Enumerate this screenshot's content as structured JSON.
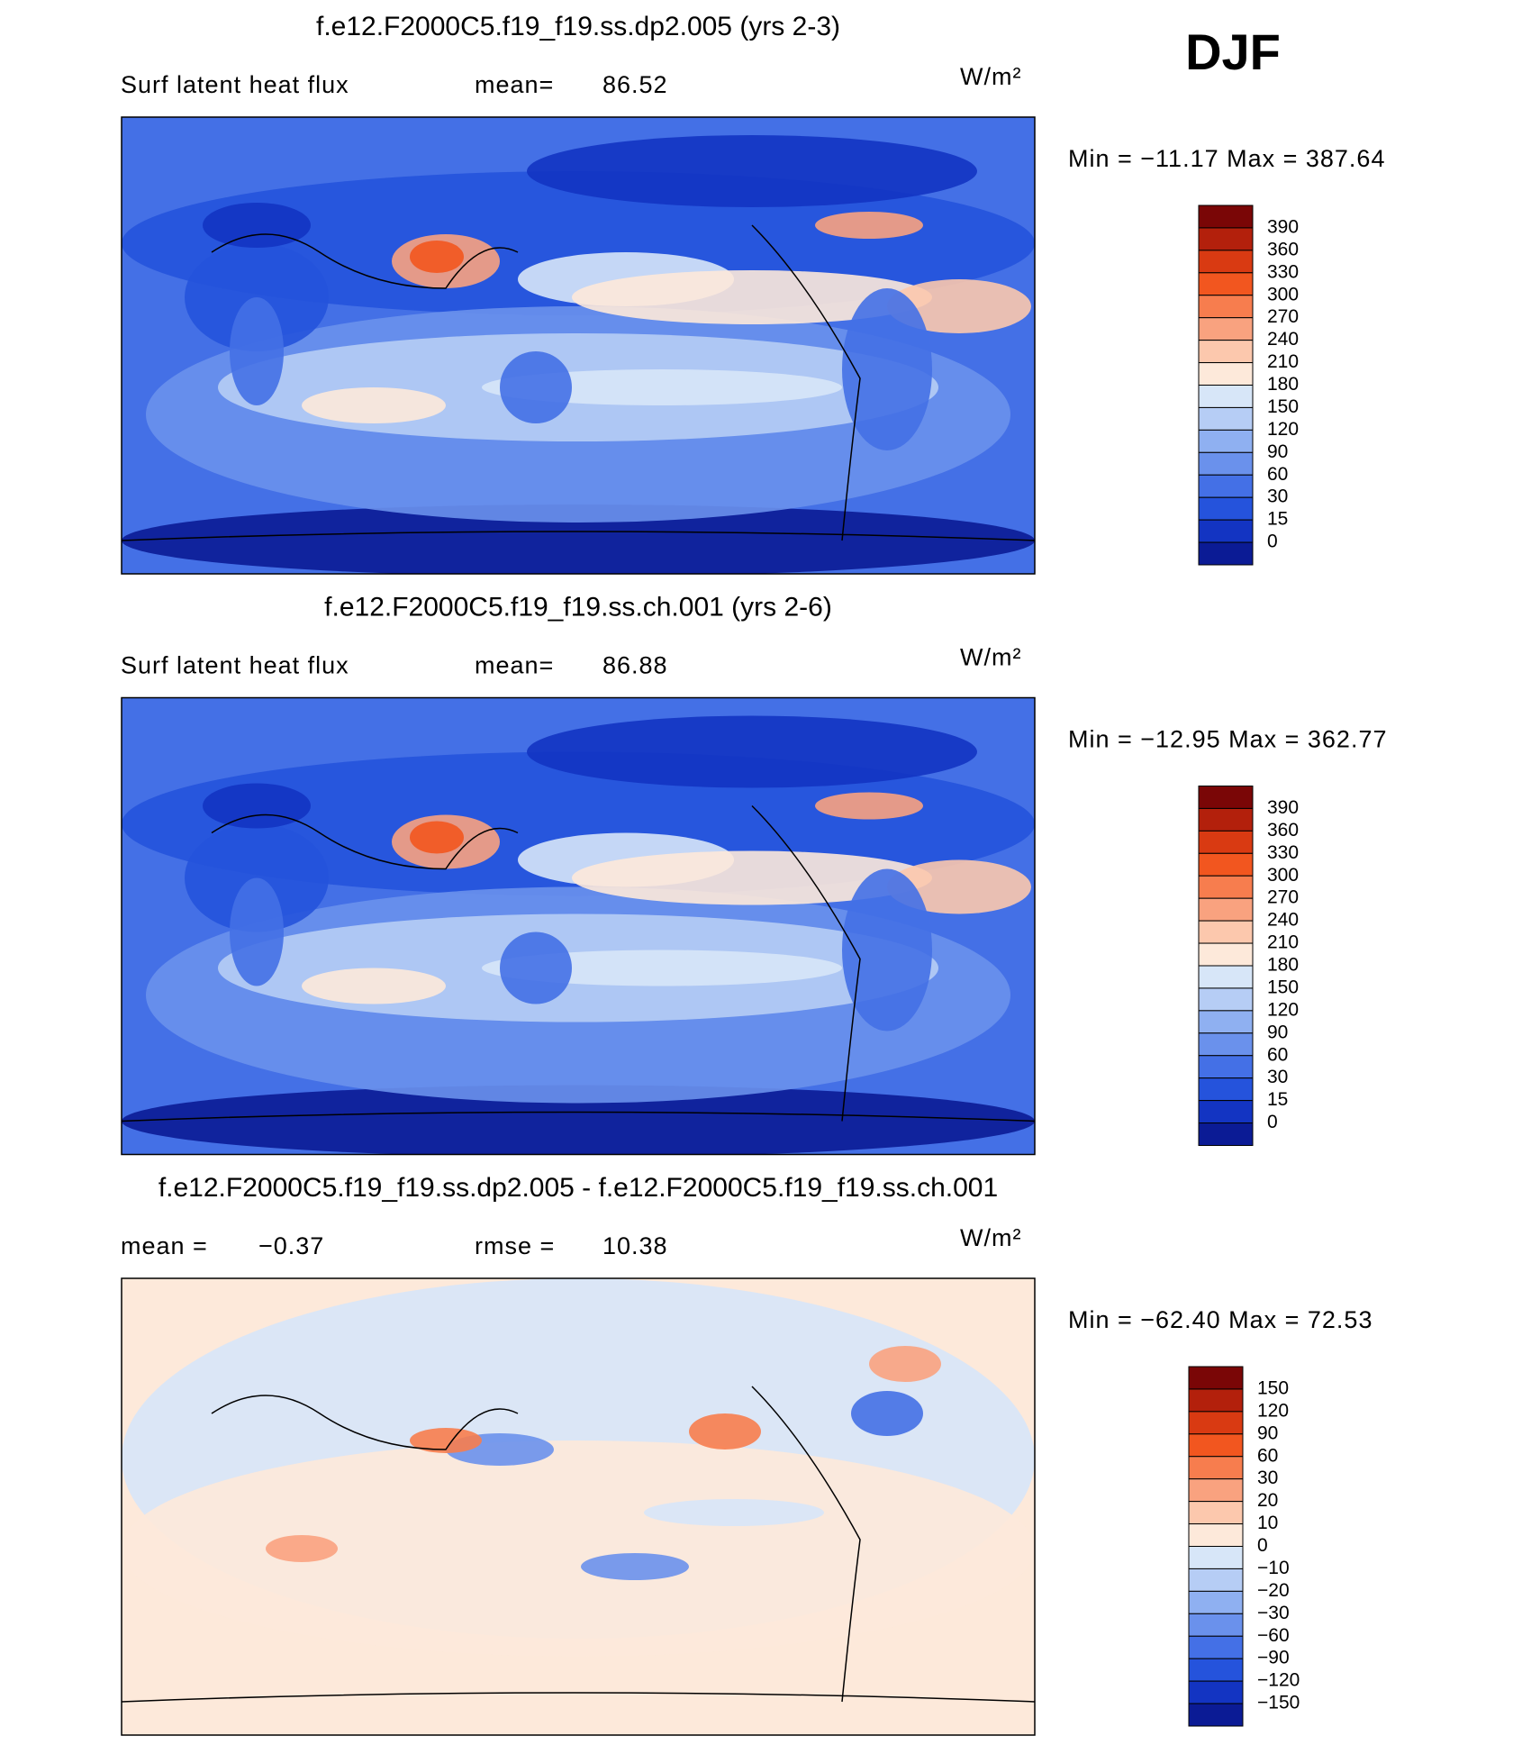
{
  "season": "DJF",
  "units": "W/m²",
  "panels": [
    {
      "title": "f.e12.F2000C5.f19_f19.ss.dp2.005 (yrs 2-3)",
      "variable": "Surf latent heat flux",
      "stat1_label": "mean=",
      "stat1_value": "86.52",
      "range": "Min  =  −11.17  Max  =  387.64",
      "levels": [
        "390",
        "360",
        "330",
        "300",
        "270",
        "240",
        "210",
        "180",
        "150",
        "120",
        "90",
        "60",
        "30",
        "15",
        "0"
      ]
    },
    {
      "title": "f.e12.F2000C5.f19_f19.ss.ch.001 (yrs 2-6)",
      "variable": "Surf latent heat flux",
      "stat1_label": "mean=",
      "stat1_value": "86.88",
      "range": "Min  =  −12.95  Max  =  362.77",
      "levels": [
        "390",
        "360",
        "330",
        "300",
        "270",
        "240",
        "210",
        "180",
        "150",
        "120",
        "90",
        "60",
        "30",
        "15",
        "0"
      ]
    },
    {
      "title": "f.e12.F2000C5.f19_f19.ss.dp2.005 - f.e12.F2000C5.f19_f19.ss.ch.001",
      "stat0_label": "mean =",
      "stat0_value": "−0.37",
      "stat1_label": "rmse =",
      "stat1_value": "10.38",
      "range": "Min  =  −62.40  Max  =    72.53",
      "levels": [
        "150",
        "120",
        "90",
        "60",
        "30",
        "20",
        "10",
        "0",
        "−10",
        "−20",
        "−30",
        "−60",
        "−90",
        "−120",
        "−150"
      ]
    }
  ],
  "colors": [
    "#7a0606",
    "#b3200c",
    "#d93a12",
    "#f2561f",
    "#f77d4e",
    "#f9a27f",
    "#fcc8ad",
    "#fde9da",
    "#d7e6f8",
    "#b6cdf5",
    "#8fb0f1",
    "#6a91ec",
    "#4470e6",
    "#2553dc",
    "#1334c2",
    "#0b1b95"
  ]
}
